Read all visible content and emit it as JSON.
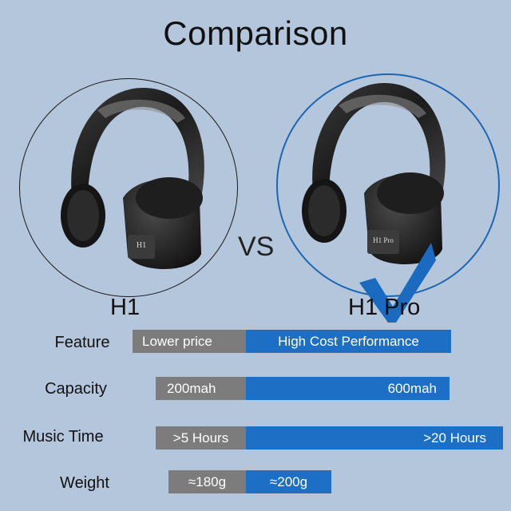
{
  "title": "Comparison",
  "vs_label": "VS",
  "models": {
    "left": {
      "name": "H1",
      "badge_text": "H1"
    },
    "right": {
      "name": "H1 Pro",
      "badge_text": "H1 Pro"
    }
  },
  "colors": {
    "background": "#b4c6dc",
    "h1_bar": "#7c7c7c",
    "h1pro_bar": "#1c6fc4",
    "highlight_circle": "#1d66b3",
    "checkmark": "#1a6bc0"
  },
  "icons": {
    "winner_mark": "checkmark-icon"
  },
  "rows": [
    {
      "label": "Feature",
      "h1": "Lower price",
      "h1pro": "High Cost Performance"
    },
    {
      "label": "Capacity",
      "h1": "200mah",
      "h1pro": "600mah"
    },
    {
      "label": "Music Time",
      "h1": ">5 Hours",
      "h1pro": ">20 Hours"
    },
    {
      "label": "Weight",
      "h1": "≈180g",
      "h1pro": "≈200g"
    }
  ]
}
